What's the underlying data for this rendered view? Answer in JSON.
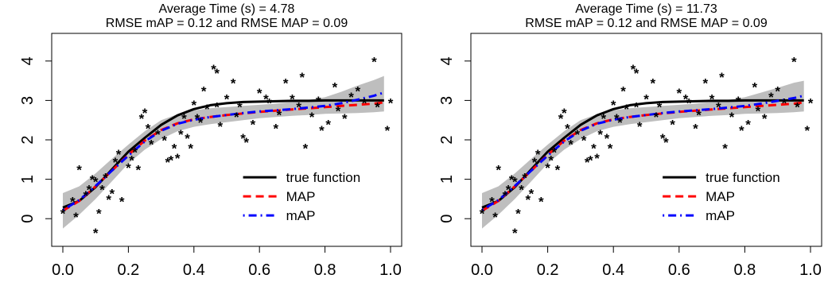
{
  "chart_data": [
    {
      "type": "line",
      "title_lines": [
        "Average Time (s) =  4.78",
        "RMSE mAP =  0.12 and RMSE MAP =  0.09"
      ],
      "xlim": [
        0,
        1
      ],
      "ylim": [
        -0.5,
        4.5
      ],
      "x_ticks": [
        0.0,
        0.2,
        0.4,
        0.6,
        0.8,
        1.0
      ],
      "x_tick_labels": [
        "0.0",
        "0.2",
        "0.4",
        "0.6",
        "0.8",
        "1.0"
      ],
      "y_ticks": [
        0,
        1,
        2,
        3,
        4
      ],
      "y_tick_labels": [
        "0",
        "1",
        "2",
        "3",
        "4"
      ],
      "legend_position": "bottom-right",
      "legend": [
        {
          "label": "true function",
          "color": "#000000",
          "dash": "solid"
        },
        {
          "label": "MAP",
          "color": "#ff0000",
          "dash": "dashed"
        },
        {
          "label": "mAP",
          "color": "#0000ff",
          "dash": "dotdash"
        }
      ],
      "band_color": "#bebebe",
      "x": [
        0.0,
        0.05,
        0.1,
        0.15,
        0.2,
        0.25,
        0.3,
        0.35,
        0.4,
        0.45,
        0.5,
        0.55,
        0.6,
        0.65,
        0.7,
        0.75,
        0.8,
        0.85,
        0.9,
        0.95,
        0.98
      ],
      "series": [
        {
          "name": "true function",
          "values": [
            0.28,
            0.45,
            0.8,
            1.25,
            1.7,
            2.05,
            2.38,
            2.62,
            2.78,
            2.88,
            2.93,
            2.96,
            2.97,
            2.98,
            2.99,
            2.99,
            3.0,
            3.0,
            3.0,
            3.0,
            3.0
          ]
        },
        {
          "name": "MAP",
          "values": [
            0.2,
            0.45,
            0.82,
            1.22,
            1.62,
            1.98,
            2.25,
            2.42,
            2.52,
            2.58,
            2.63,
            2.67,
            2.71,
            2.74,
            2.77,
            2.8,
            2.83,
            2.86,
            2.89,
            2.92,
            2.95
          ]
        },
        {
          "name": "mAP",
          "values": [
            0.22,
            0.47,
            0.83,
            1.22,
            1.6,
            1.96,
            2.23,
            2.41,
            2.51,
            2.58,
            2.63,
            2.68,
            2.72,
            2.75,
            2.78,
            2.82,
            2.86,
            2.93,
            3.02,
            3.12,
            3.2
          ]
        }
      ],
      "band_lower": [
        -0.25,
        0.1,
        0.5,
        0.95,
        1.4,
        1.75,
        2.02,
        2.22,
        2.33,
        2.4,
        2.45,
        2.5,
        2.55,
        2.58,
        2.61,
        2.63,
        2.66,
        2.67,
        2.68,
        2.7,
        2.72
      ],
      "band_upper": [
        0.65,
        0.82,
        1.15,
        1.52,
        1.88,
        2.22,
        2.5,
        2.65,
        2.75,
        2.8,
        2.83,
        2.86,
        2.89,
        2.92,
        2.96,
        3.01,
        3.08,
        3.22,
        3.38,
        3.52,
        3.62
      ],
      "points": [
        [
          0.0,
          0.2
        ],
        [
          0.03,
          0.5
        ],
        [
          0.04,
          0.1
        ],
        [
          0.05,
          1.3
        ],
        [
          0.07,
          0.65
        ],
        [
          0.08,
          0.8
        ],
        [
          0.09,
          1.05
        ],
        [
          0.1,
          1.0
        ],
        [
          0.1,
          -0.3
        ],
        [
          0.11,
          0.2
        ],
        [
          0.12,
          0.8
        ],
        [
          0.13,
          1.1
        ],
        [
          0.14,
          0.55
        ],
        [
          0.15,
          0.7
        ],
        [
          0.16,
          1.5
        ],
        [
          0.17,
          1.7
        ],
        [
          0.18,
          0.5
        ],
        [
          0.2,
          1.35
        ],
        [
          0.21,
          1.55
        ],
        [
          0.22,
          1.75
        ],
        [
          0.23,
          1.3
        ],
        [
          0.24,
          2.6
        ],
        [
          0.25,
          2.75
        ],
        [
          0.26,
          2.35
        ],
        [
          0.27,
          1.95
        ],
        [
          0.29,
          2.2
        ],
        [
          0.31,
          2.05
        ],
        [
          0.32,
          1.5
        ],
        [
          0.33,
          1.55
        ],
        [
          0.34,
          1.85
        ],
        [
          0.35,
          1.6
        ],
        [
          0.36,
          2.2
        ],
        [
          0.37,
          2.6
        ],
        [
          0.38,
          2.1
        ],
        [
          0.39,
          1.85
        ],
        [
          0.4,
          2.95
        ],
        [
          0.41,
          2.6
        ],
        [
          0.42,
          2.5
        ],
        [
          0.43,
          3.3
        ],
        [
          0.44,
          2.85
        ],
        [
          0.46,
          3.85
        ],
        [
          0.47,
          3.75
        ],
        [
          0.47,
          2.9
        ],
        [
          0.48,
          2.4
        ],
        [
          0.5,
          3.1
        ],
        [
          0.52,
          3.5
        ],
        [
          0.53,
          2.65
        ],
        [
          0.54,
          2.9
        ],
        [
          0.55,
          2.1
        ],
        [
          0.56,
          2.0
        ],
        [
          0.58,
          2.45
        ],
        [
          0.6,
          3.25
        ],
        [
          0.62,
          3.1
        ],
        [
          0.63,
          3.0
        ],
        [
          0.65,
          2.35
        ],
        [
          0.66,
          2.7
        ],
        [
          0.68,
          3.5
        ],
        [
          0.7,
          3.1
        ],
        [
          0.72,
          2.9
        ],
        [
          0.73,
          3.65
        ],
        [
          0.74,
          1.85
        ],
        [
          0.76,
          2.65
        ],
        [
          0.78,
          3.05
        ],
        [
          0.79,
          2.3
        ],
        [
          0.81,
          2.45
        ],
        [
          0.83,
          3.4
        ],
        [
          0.84,
          2.8
        ],
        [
          0.86,
          2.6
        ],
        [
          0.88,
          3.15
        ],
        [
          0.9,
          3.3
        ],
        [
          0.92,
          3.0
        ],
        [
          0.95,
          4.05
        ],
        [
          0.96,
          2.9
        ],
        [
          0.99,
          2.3
        ],
        [
          1.0,
          3.0
        ]
      ]
    },
    {
      "type": "line",
      "title_lines": [
        "Average Time (s) =  11.73",
        "RMSE mAP =  0.12 and RMSE MAP =  0.09"
      ],
      "xlim": [
        0,
        1
      ],
      "ylim": [
        -0.5,
        4.5
      ],
      "x_ticks": [
        0.0,
        0.2,
        0.4,
        0.6,
        0.8,
        1.0
      ],
      "x_tick_labels": [
        "0.0",
        "0.2",
        "0.4",
        "0.6",
        "0.8",
        "1.0"
      ],
      "y_ticks": [
        0,
        1,
        2,
        3,
        4
      ],
      "y_tick_labels": [
        "0",
        "1",
        "2",
        "3",
        "4"
      ],
      "legend_position": "bottom-right",
      "legend": [
        {
          "label": "true function",
          "color": "#000000",
          "dash": "solid"
        },
        {
          "label": "MAP",
          "color": "#ff0000",
          "dash": "dashed"
        },
        {
          "label": "mAP",
          "color": "#0000ff",
          "dash": "dotdash"
        }
      ],
      "band_color": "#bebebe",
      "x": [
        0.0,
        0.05,
        0.1,
        0.15,
        0.2,
        0.25,
        0.3,
        0.35,
        0.4,
        0.45,
        0.5,
        0.55,
        0.6,
        0.65,
        0.7,
        0.75,
        0.8,
        0.85,
        0.9,
        0.95,
        0.98
      ],
      "series": [
        {
          "name": "true function",
          "values": [
            0.28,
            0.45,
            0.8,
            1.25,
            1.7,
            2.05,
            2.38,
            2.62,
            2.78,
            2.88,
            2.93,
            2.96,
            2.97,
            2.98,
            2.99,
            2.99,
            3.0,
            3.0,
            3.0,
            3.0,
            3.0
          ]
        },
        {
          "name": "MAP",
          "values": [
            0.2,
            0.45,
            0.82,
            1.22,
            1.62,
            1.98,
            2.25,
            2.42,
            2.52,
            2.58,
            2.63,
            2.67,
            2.71,
            2.74,
            2.77,
            2.8,
            2.83,
            2.86,
            2.89,
            2.92,
            2.95
          ]
        },
        {
          "name": "mAP",
          "values": [
            0.22,
            0.47,
            0.83,
            1.22,
            1.6,
            1.96,
            2.23,
            2.41,
            2.51,
            2.58,
            2.63,
            2.68,
            2.72,
            2.75,
            2.78,
            2.82,
            2.86,
            2.92,
            2.99,
            3.06,
            3.12
          ]
        }
      ],
      "band_lower": [
        -0.25,
        0.1,
        0.5,
        0.95,
        1.4,
        1.75,
        2.02,
        2.22,
        2.33,
        2.4,
        2.45,
        2.5,
        2.55,
        2.58,
        2.61,
        2.63,
        2.66,
        2.67,
        2.68,
        2.7,
        2.72
      ],
      "band_upper": [
        0.65,
        0.82,
        1.15,
        1.52,
        1.88,
        2.22,
        2.5,
        2.65,
        2.75,
        2.8,
        2.83,
        2.86,
        2.89,
        2.92,
        2.96,
        3.01,
        3.08,
        3.2,
        3.32,
        3.45,
        3.5
      ],
      "points": [
        [
          0.0,
          0.2
        ],
        [
          0.03,
          0.5
        ],
        [
          0.04,
          0.1
        ],
        [
          0.05,
          1.3
        ],
        [
          0.07,
          0.65
        ],
        [
          0.08,
          0.8
        ],
        [
          0.09,
          1.05
        ],
        [
          0.1,
          1.0
        ],
        [
          0.1,
          -0.3
        ],
        [
          0.11,
          0.2
        ],
        [
          0.12,
          0.8
        ],
        [
          0.13,
          1.1
        ],
        [
          0.14,
          0.55
        ],
        [
          0.15,
          0.7
        ],
        [
          0.16,
          1.5
        ],
        [
          0.17,
          1.7
        ],
        [
          0.18,
          0.5
        ],
        [
          0.2,
          1.35
        ],
        [
          0.21,
          1.55
        ],
        [
          0.22,
          1.75
        ],
        [
          0.23,
          1.3
        ],
        [
          0.24,
          2.6
        ],
        [
          0.25,
          2.75
        ],
        [
          0.26,
          2.35
        ],
        [
          0.27,
          1.95
        ],
        [
          0.29,
          2.2
        ],
        [
          0.31,
          2.05
        ],
        [
          0.32,
          1.5
        ],
        [
          0.33,
          1.55
        ],
        [
          0.34,
          1.85
        ],
        [
          0.35,
          1.6
        ],
        [
          0.36,
          2.2
        ],
        [
          0.37,
          2.6
        ],
        [
          0.38,
          2.1
        ],
        [
          0.39,
          1.85
        ],
        [
          0.4,
          2.95
        ],
        [
          0.41,
          2.6
        ],
        [
          0.42,
          2.5
        ],
        [
          0.43,
          3.3
        ],
        [
          0.44,
          2.85
        ],
        [
          0.46,
          3.85
        ],
        [
          0.47,
          3.75
        ],
        [
          0.47,
          2.9
        ],
        [
          0.48,
          2.4
        ],
        [
          0.5,
          3.1
        ],
        [
          0.52,
          3.5
        ],
        [
          0.53,
          2.65
        ],
        [
          0.54,
          2.9
        ],
        [
          0.55,
          2.1
        ],
        [
          0.56,
          2.0
        ],
        [
          0.58,
          2.45
        ],
        [
          0.6,
          3.25
        ],
        [
          0.62,
          3.1
        ],
        [
          0.63,
          3.0
        ],
        [
          0.65,
          2.35
        ],
        [
          0.66,
          2.7
        ],
        [
          0.68,
          3.5
        ],
        [
          0.7,
          3.1
        ],
        [
          0.72,
          2.9
        ],
        [
          0.73,
          3.65
        ],
        [
          0.74,
          1.85
        ],
        [
          0.76,
          2.65
        ],
        [
          0.78,
          3.05
        ],
        [
          0.79,
          2.3
        ],
        [
          0.81,
          2.45
        ],
        [
          0.83,
          3.4
        ],
        [
          0.84,
          2.8
        ],
        [
          0.86,
          2.6
        ],
        [
          0.88,
          3.15
        ],
        [
          0.9,
          3.3
        ],
        [
          0.92,
          3.0
        ],
        [
          0.95,
          4.05
        ],
        [
          0.96,
          2.9
        ],
        [
          0.99,
          2.3
        ],
        [
          1.0,
          3.0
        ]
      ]
    }
  ]
}
